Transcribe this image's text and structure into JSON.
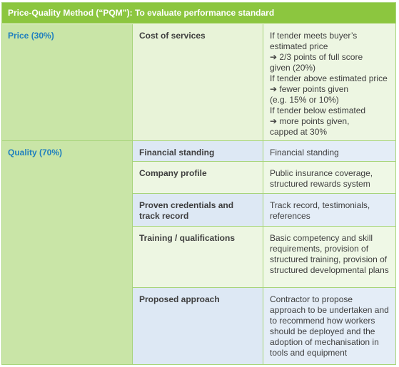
{
  "title": "Price-Quality Method (“PQM”): To evaluate performance standard",
  "price_row": {
    "category": "Price (30%)",
    "criterion": "Cost of services",
    "description_lines": [
      "If tender meets buyer’s",
      "estimated price",
      "➔ 2/3 points of full score",
      "given (20%)",
      "If tender above estimated price",
      "➔ fewer points given",
      "(e.g. 15% or 10%)",
      "If tender below estimated",
      "➔ more points given,",
      "capped at 30%"
    ]
  },
  "quality_row": {
    "category": "Quality (70%)",
    "items": [
      {
        "criterion": "Financial standing",
        "description": "Financial standing"
      },
      {
        "criterion": "Company profile",
        "description": "Public insurance coverage, structured rewards system"
      },
      {
        "criterion": "Proven credentials and track record",
        "description": "Track record, testimonials, references"
      },
      {
        "criterion": "Training / qualifications",
        "description": "Basic competency and skill requirements, provision of structured training, provision of structured developmental plans"
      },
      {
        "criterion": "Proposed approach",
        "description": "Contractor to propose approach to be undertaken and to recommend how workers should be deployed and the adoption of mechanisation in tools and equipment"
      }
    ]
  },
  "colors": {
    "header_bg": "#8cc63f",
    "category_bg": "#c9e5a7",
    "category_text": "#1f7fbe",
    "alt_row_bg": "#dde8f4",
    "plain_row_bg": "#edf6e2"
  }
}
